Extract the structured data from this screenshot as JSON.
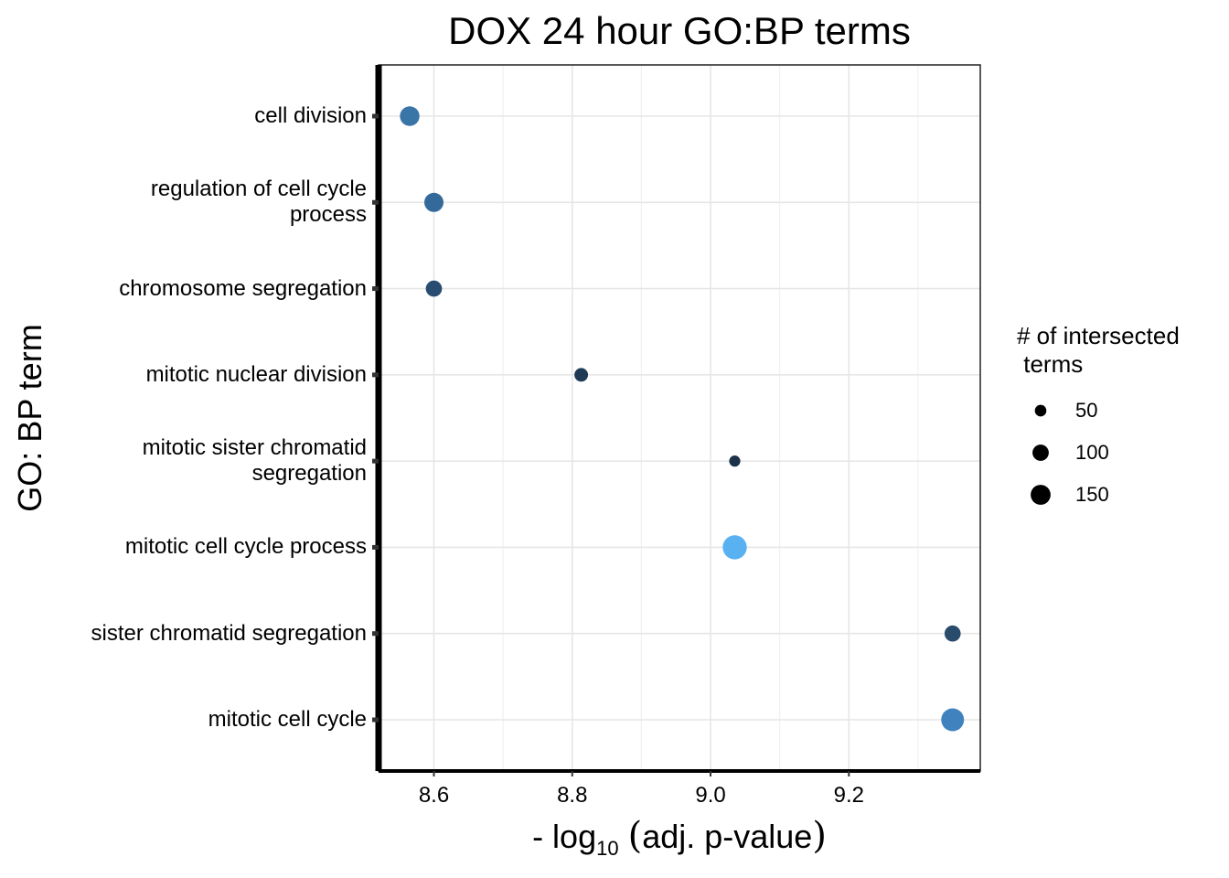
{
  "chart_data": {
    "type": "scatter",
    "title": "DOX 24 hour GO:BP terms",
    "xlabel_prefix": "- log",
    "xlabel_sub": "10",
    "xlabel_open": "(",
    "xlabel_text": "adj. p-value",
    "xlabel_close": ")",
    "ylabel": "GO: BP term",
    "xlim": [
      8.52,
      9.39
    ],
    "x_ticks": [
      8.6,
      8.8,
      9.0,
      9.2
    ],
    "x_tick_labels": [
      "8.6",
      "8.8",
      "9.0",
      "9.2"
    ],
    "categories": [
      "cell division",
      "regulation of cell cycle\nprocess",
      "chromosome segregation",
      "mitotic nuclear division",
      "mitotic sister chromatid\nsegregation",
      "mitotic cell cycle process",
      "sister chromatid segregation",
      "mitotic cell cycle"
    ],
    "points": [
      {
        "term": "cell division",
        "x": 8.565,
        "size": 125,
        "color": "#3a75a8"
      },
      {
        "term": "regulation of cell cycle\nprocess",
        "x": 8.6,
        "size": 120,
        "color": "#346a9a"
      },
      {
        "term": "chromosome segregation",
        "x": 8.6,
        "size": 85,
        "color": "#284d70"
      },
      {
        "term": "mitotic nuclear division",
        "x": 8.813,
        "size": 60,
        "color": "#1f3a55"
      },
      {
        "term": "mitotic sister chromatid\nsegregation",
        "x": 9.035,
        "size": 40,
        "color": "#1c3249"
      },
      {
        "term": "mitotic cell cycle process",
        "x": 9.035,
        "size": 190,
        "color": "#5ab1f2"
      },
      {
        "term": "sister chromatid segregation",
        "x": 9.35,
        "size": 85,
        "color": "#2a4c6c"
      },
      {
        "term": "mitotic cell cycle",
        "x": 9.35,
        "size": 170,
        "color": "#3f82bd"
      }
    ],
    "legend": {
      "title": "# of intersected\n terms",
      "placement": "right",
      "entries": [
        {
          "label": "50",
          "size": 50
        },
        {
          "label": "100",
          "size": 100
        },
        {
          "label": "150",
          "size": 150
        }
      ]
    },
    "grid": true
  }
}
